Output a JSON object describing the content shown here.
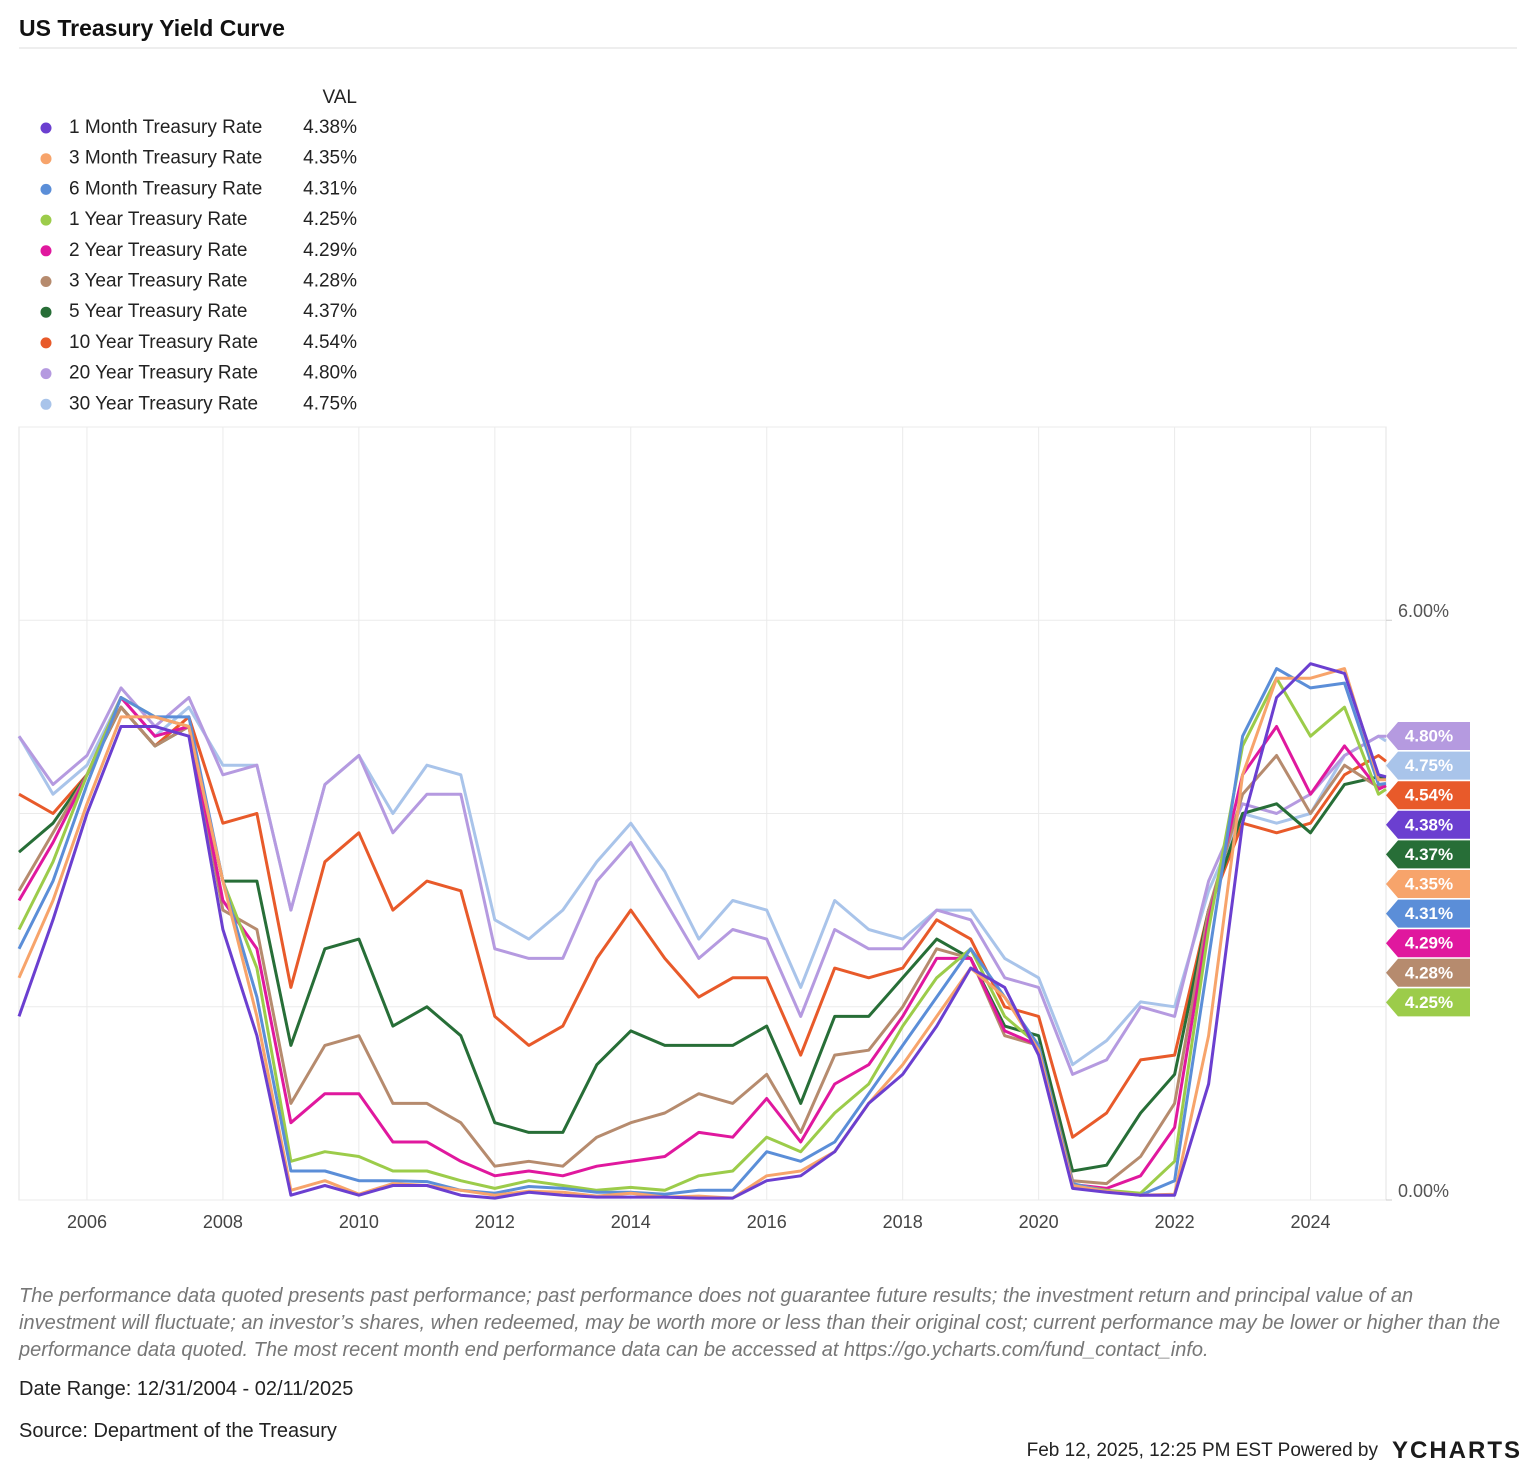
{
  "chart_data": {
    "type": "line",
    "title": "US Treasury Yield Curve",
    "legend_header": "VAL",
    "x": [
      2005,
      2005.5,
      2006,
      2006.5,
      2007,
      2007.5,
      2008,
      2008.5,
      2009,
      2009.5,
      2010,
      2010.5,
      2011,
      2011.5,
      2012,
      2012.5,
      2013,
      2013.5,
      2014,
      2014.5,
      2015,
      2015.5,
      2016,
      2016.5,
      2017,
      2017.5,
      2018,
      2018.5,
      2019,
      2019.5,
      2020,
      2020.5,
      2021,
      2021.5,
      2022,
      2022.5,
      2023,
      2023.5,
      2024,
      2024.5,
      2025,
      2025.11
    ],
    "xlim": [
      2005,
      2025.11
    ],
    "xticks": [
      2006,
      2008,
      2010,
      2012,
      2014,
      2016,
      2018,
      2020,
      2022,
      2024
    ],
    "ylim": [
      0,
      8
    ],
    "yticks": [
      {
        "value": 0,
        "label": "0.00%"
      },
      {
        "value": 6,
        "label": "6.00%"
      }
    ],
    "ygrid": [
      0,
      2,
      4,
      6,
      8
    ],
    "grid": true,
    "series": [
      {
        "name": "1 Month Treasury Rate",
        "color": "#6b3fd0",
        "last_label": "4.38%",
        "values": [
          1.9,
          2.9,
          4.0,
          4.9,
          4.9,
          4.8,
          2.8,
          1.7,
          0.05,
          0.15,
          0.05,
          0.15,
          0.15,
          0.05,
          0.02,
          0.08,
          0.05,
          0.03,
          0.03,
          0.03,
          0.02,
          0.02,
          0.2,
          0.25,
          0.5,
          1.0,
          1.3,
          1.8,
          2.4,
          2.2,
          1.5,
          0.12,
          0.08,
          0.05,
          0.05,
          1.2,
          3.9,
          5.2,
          5.55,
          5.45,
          4.4,
          4.38
        ]
      },
      {
        "name": "3 Month Treasury Rate",
        "color": "#f7a46b",
        "last_label": "4.35%",
        "values": [
          2.3,
          3.1,
          4.1,
          5.0,
          5.0,
          4.9,
          3.3,
          1.9,
          0.1,
          0.2,
          0.06,
          0.17,
          0.15,
          0.1,
          0.05,
          0.09,
          0.08,
          0.04,
          0.07,
          0.03,
          0.04,
          0.02,
          0.25,
          0.3,
          0.5,
          1.0,
          1.4,
          1.9,
          2.4,
          2.1,
          1.55,
          0.15,
          0.09,
          0.05,
          0.06,
          1.7,
          4.4,
          5.4,
          5.4,
          5.5,
          4.35,
          4.35
        ]
      },
      {
        "name": "6 Month Treasury Rate",
        "color": "#5b8ed8",
        "last_label": "4.31%",
        "values": [
          2.6,
          3.3,
          4.3,
          5.2,
          5.0,
          5.0,
          3.3,
          2.1,
          0.3,
          0.3,
          0.2,
          0.2,
          0.19,
          0.1,
          0.07,
          0.14,
          0.12,
          0.08,
          0.08,
          0.06,
          0.1,
          0.1,
          0.5,
          0.4,
          0.6,
          1.1,
          1.6,
          2.1,
          2.6,
          2.1,
          1.6,
          0.17,
          0.09,
          0.05,
          0.2,
          2.5,
          4.8,
          5.5,
          5.3,
          5.35,
          4.3,
          4.31
        ]
      },
      {
        "name": "1 Year Treasury Rate",
        "color": "#9ccc4a",
        "last_label": "4.25%",
        "values": [
          2.8,
          3.5,
          4.4,
          5.2,
          5.0,
          4.9,
          3.3,
          2.4,
          0.4,
          0.5,
          0.45,
          0.3,
          0.3,
          0.2,
          0.12,
          0.2,
          0.15,
          0.1,
          0.13,
          0.1,
          0.25,
          0.3,
          0.65,
          0.5,
          0.9,
          1.2,
          1.8,
          2.3,
          2.6,
          1.9,
          1.6,
          0.16,
          0.1,
          0.07,
          0.4,
          2.8,
          4.7,
          5.4,
          4.8,
          5.1,
          4.2,
          4.25
        ]
      },
      {
        "name": "2 Year Treasury Rate",
        "color": "#e0189e",
        "last_label": "4.29%",
        "values": [
          3.1,
          3.7,
          4.4,
          5.2,
          4.8,
          4.9,
          3.1,
          2.6,
          0.8,
          1.1,
          1.1,
          0.6,
          0.6,
          0.4,
          0.25,
          0.3,
          0.25,
          0.35,
          0.4,
          0.45,
          0.7,
          0.65,
          1.05,
          0.6,
          1.2,
          1.4,
          1.9,
          2.5,
          2.5,
          1.75,
          1.6,
          0.16,
          0.12,
          0.25,
          0.75,
          2.9,
          4.4,
          4.9,
          4.2,
          4.7,
          4.25,
          4.29
        ]
      },
      {
        "name": "3 Year Treasury Rate",
        "color": "#b68b6e",
        "last_label": "4.28%",
        "values": [
          3.2,
          3.8,
          4.4,
          5.1,
          4.7,
          4.9,
          3.0,
          2.8,
          1.0,
          1.6,
          1.7,
          1.0,
          1.0,
          0.8,
          0.35,
          0.4,
          0.35,
          0.65,
          0.8,
          0.9,
          1.1,
          1.0,
          1.3,
          0.7,
          1.5,
          1.55,
          2.0,
          2.6,
          2.5,
          1.7,
          1.6,
          0.2,
          0.17,
          0.45,
          1.0,
          3.0,
          4.2,
          4.6,
          4.0,
          4.5,
          4.27,
          4.28
        ]
      },
      {
        "name": "5 Year Treasury Rate",
        "color": "#276e37",
        "last_label": "4.37%",
        "values": [
          3.6,
          3.9,
          4.4,
          5.1,
          4.7,
          4.9,
          3.3,
          3.3,
          1.6,
          2.6,
          2.7,
          1.8,
          2.0,
          1.7,
          0.8,
          0.7,
          0.7,
          1.4,
          1.75,
          1.6,
          1.6,
          1.6,
          1.8,
          1.0,
          1.9,
          1.9,
          2.3,
          2.7,
          2.5,
          1.8,
          1.7,
          0.3,
          0.36,
          0.9,
          1.3,
          3.0,
          4.0,
          4.1,
          3.8,
          4.3,
          4.38,
          4.37
        ]
      },
      {
        "name": "10 Year Treasury Rate",
        "color": "#e85a2a",
        "last_label": "4.54%",
        "values": [
          4.2,
          4.0,
          4.4,
          5.1,
          4.7,
          5.0,
          3.9,
          4.0,
          2.2,
          3.5,
          3.8,
          3.0,
          3.3,
          3.2,
          1.9,
          1.6,
          1.8,
          2.5,
          3.0,
          2.5,
          2.1,
          2.3,
          2.3,
          1.5,
          2.4,
          2.3,
          2.4,
          2.9,
          2.7,
          2.0,
          1.9,
          0.65,
          0.9,
          1.45,
          1.5,
          3.0,
          3.9,
          3.8,
          3.9,
          4.4,
          4.6,
          4.54
        ]
      },
      {
        "name": "20 Year Treasury Rate",
        "color": "#b59ae0",
        "last_label": "4.80%",
        "values": [
          4.8,
          4.3,
          4.6,
          5.3,
          4.9,
          5.2,
          4.4,
          4.5,
          3.0,
          4.3,
          4.6,
          3.8,
          4.2,
          4.2,
          2.6,
          2.5,
          2.5,
          3.3,
          3.7,
          3.1,
          2.5,
          2.8,
          2.7,
          1.9,
          2.8,
          2.6,
          2.6,
          3.0,
          2.9,
          2.3,
          2.2,
          1.3,
          1.45,
          2.0,
          1.9,
          3.3,
          4.1,
          4.0,
          4.2,
          4.6,
          4.8,
          4.8
        ]
      },
      {
        "name": "30 Year Treasury Rate",
        "color": "#a9c4ea",
        "last_label": "4.75%",
        "values": [
          4.8,
          4.2,
          4.5,
          5.2,
          4.8,
          5.1,
          4.5,
          4.5,
          3.0,
          4.3,
          4.6,
          4.0,
          4.5,
          4.4,
          2.9,
          2.7,
          3.0,
          3.5,
          3.9,
          3.4,
          2.7,
          3.1,
          3.0,
          2.2,
          3.1,
          2.8,
          2.7,
          3.0,
          3.0,
          2.5,
          2.3,
          1.4,
          1.65,
          2.05,
          2.0,
          3.2,
          4.0,
          3.9,
          4.0,
          4.6,
          4.8,
          4.75
        ]
      }
    ]
  },
  "footer": {
    "disclaimer": "The performance data quoted presents past performance; past performance does not guarantee future results; the investment return and principal value of an investment will fluctuate; an investor’s shares, when redeemed, may be worth more or less than their original cost; current performance may be lower or higher than the performance data quoted. The most recent month end performance data can be accessed at https://go.ycharts.com/fund_contact_info.",
    "date_range": "Date Range: 12/31/2004 - 02/11/2025",
    "source": "Source: Department of the Treasury",
    "timestamp": "Feb 12, 2025, 12:25 PM EST Powered by",
    "brand": "YCHARTS"
  }
}
